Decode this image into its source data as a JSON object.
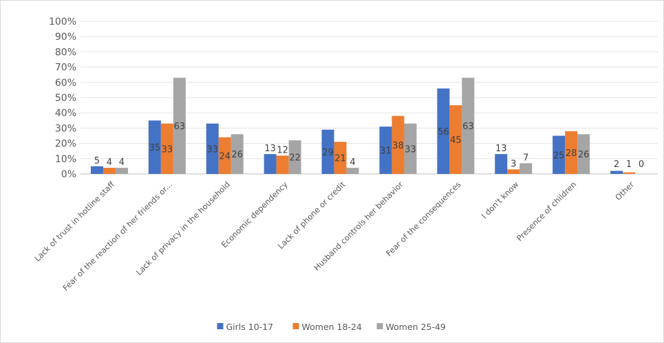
{
  "chart_data": {
    "type": "bar",
    "title": "",
    "xlabel": "",
    "ylabel": "",
    "ylim": [
      0,
      100
    ],
    "y_ticks": [
      "0%",
      "10%",
      "20%",
      "30%",
      "40%",
      "50%",
      "60%",
      "70%",
      "80%",
      "90%",
      "100%"
    ],
    "grid": "horizontal",
    "legend_position": "bottom",
    "categories": [
      "Lack of trust in hotline staff",
      "Fear of the reaction of her friends or...",
      "Lack of privacy in the household",
      "Economic dependency",
      "Lack of phone or credit",
      "Husband controls her behavior",
      "Fear of the consequences",
      "I don't know",
      "Presence of children",
      "Other"
    ],
    "series": [
      {
        "name": "Girls 10-17",
        "color": "#4472c4",
        "values": [
          5,
          35,
          33,
          13,
          29,
          31,
          56,
          13,
          25,
          2
        ]
      },
      {
        "name": "Women 18-24",
        "color": "#ed7d31",
        "values": [
          4,
          33,
          24,
          12,
          21,
          38,
          45,
          3,
          28,
          1
        ]
      },
      {
        "name": "Women 25-49",
        "color": "#a5a5a5",
        "values": [
          4,
          63,
          26,
          22,
          4,
          33,
          63,
          7,
          26,
          0
        ]
      }
    ]
  }
}
